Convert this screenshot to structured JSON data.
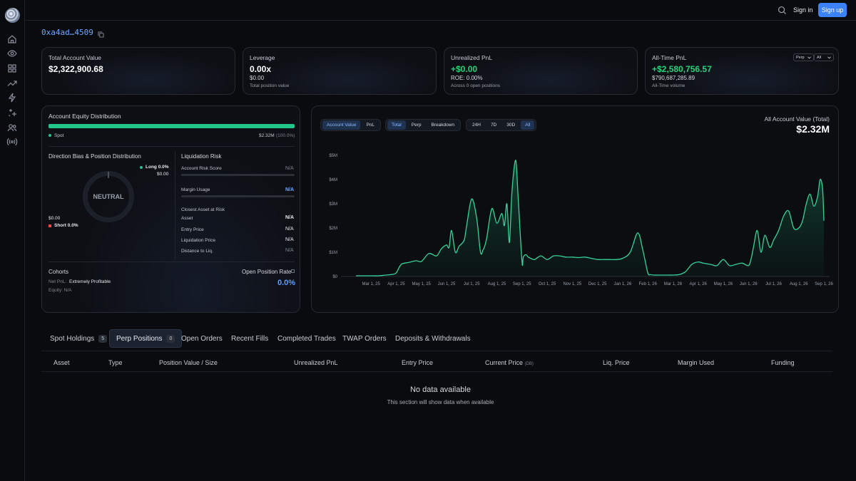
{
  "colors": {
    "accent": "#3b82f6",
    "positive": "#22d37c",
    "negative": "#ef4444",
    "address": "#6ea8ff",
    "rate": "#5b9cff"
  },
  "topbar": {
    "signin": "Sign in",
    "signup": "Sign up",
    "search_icon": "search-icon"
  },
  "sidebar": {
    "items": [
      {
        "icon": "home-icon"
      },
      {
        "icon": "eye-icon"
      },
      {
        "icon": "grid-icon"
      },
      {
        "icon": "trending-icon"
      },
      {
        "icon": "bolt-icon"
      },
      {
        "icon": "sparkles-icon"
      },
      {
        "icon": "users-icon"
      },
      {
        "icon": "broadcast-icon"
      }
    ]
  },
  "address": "0xa4ad…4509",
  "cards": {
    "account_value": {
      "label": "Total Account Value",
      "value": "$2,322,900.68"
    },
    "leverage": {
      "label": "Leverage",
      "value": "0.00x",
      "sub": "$0.00",
      "note": "Total position value"
    },
    "unrealized": {
      "label": "Unrealized PnL",
      "value": "+$0.00",
      "sub": "ROE: 0.00%",
      "note": "Across 0 open positions"
    },
    "alltime": {
      "label": "All-Time PnL",
      "value": "+$2,580,756.57",
      "sub": "$790,687,285.89",
      "note": "All-Time volume",
      "select1": "Perp",
      "select2": "All"
    }
  },
  "equity": {
    "title": "Account Equity Distribution",
    "spot_label": "Spot",
    "spot_value": "$2.32M",
    "spot_pct": "(100.0%)",
    "spot_fraction": 1.0
  },
  "direction": {
    "title": "Direction Bias & Position Distribution",
    "center": "NEUTRAL",
    "long_label": "Long 0.0%",
    "long_value": "$0.00",
    "short_value": "$0.00",
    "short_label": "Short 0.0%"
  },
  "liquidation": {
    "title": "Liquidation Risk",
    "risk_score_label": "Account Risk Score",
    "risk_score": "N/A",
    "margin_label": "Margin Usage",
    "margin": "N/A",
    "closest_label": "Closest Asset at Risk",
    "rows": [
      {
        "label": "Asset",
        "value": "N/A"
      },
      {
        "label": "Entry Price",
        "value": "N/A"
      },
      {
        "label": "Liquidation Price",
        "value": "N/A"
      },
      {
        "label": "Distance to Liq.",
        "value": "N/A"
      }
    ]
  },
  "cohorts": {
    "title": "Cohorts",
    "net_pnl_label": "Net PnL:",
    "net_pnl": "Extremely Profitable",
    "equity_label": "Equity: N/A",
    "rate_label": "Open Position Rate",
    "rate_value": "0.0%"
  },
  "chart_controls": {
    "group1": [
      "Account Value",
      "PnL"
    ],
    "group2": [
      "Total",
      "Perp",
      "Breakdown"
    ],
    "group3": [
      "24H",
      "7D",
      "30D",
      "All"
    ],
    "active": [
      "Account Value",
      "Total",
      "All"
    ],
    "value_title": "All Account Value (Total)",
    "value": "$2.32M"
  },
  "chart_data": {
    "type": "area",
    "title": "",
    "xlabel": "",
    "ylabel": "",
    "ylim": [
      0,
      5000000
    ],
    "y_ticks": [
      "$0",
      "$1M",
      "$2M",
      "$3M",
      "$4M",
      "$5M"
    ],
    "x_ticks": [
      "Mar 1, 25",
      "Apr 1, 25",
      "May 1, 25",
      "Jun 1, 25",
      "Jul 1, 25",
      "Aug 1, 25",
      "Sep 1, 25",
      "Oct 1, 25",
      "Nov 1, 25",
      "Dec 1, 25",
      "Jan 1, 26",
      "Feb 1, 26",
      "Mar 1, 26",
      "Apr 1, 26",
      "May 1, 26",
      "Jun 1, 26",
      "Jul 1, 26",
      "Aug 1, 26",
      "Sep 1, 26"
    ],
    "x": [
      -0.6,
      -0.3,
      0,
      0.3,
      0.6,
      0.8,
      1.0,
      1.2,
      1.5,
      1.8,
      2.0,
      2.3,
      2.6,
      2.8,
      3.0,
      3.1,
      3.2,
      3.35,
      3.5,
      3.7,
      3.8,
      4.0,
      4.2,
      4.35,
      4.45,
      4.5,
      4.6,
      4.8,
      5.0,
      5.2,
      5.3,
      5.4,
      5.5,
      5.6,
      5.75,
      5.85,
      6.0,
      6.05,
      6.15,
      6.25,
      6.35,
      6.5,
      6.75,
      7.0,
      7.25,
      7.5,
      7.75,
      8.0,
      8.25,
      8.5,
      8.75,
      9.0,
      9.25,
      9.5,
      9.75,
      10.0,
      10.3,
      10.6,
      10.8,
      11.0,
      11.1,
      11.25,
      11.5,
      11.75,
      12.0,
      12.25,
      12.5,
      12.75,
      13.0,
      13.2,
      13.5,
      13.75,
      14.0,
      14.25,
      14.5,
      14.75,
      15.0,
      15.1,
      15.2,
      15.35,
      15.5,
      15.65,
      15.85,
      16.0,
      16.2,
      16.4,
      16.6,
      16.8,
      17.0,
      17.15,
      17.3,
      17.45,
      17.6,
      17.75,
      17.85,
      17.95,
      18.0
    ],
    "series": [
      {
        "values": [
          30000,
          30000,
          30000,
          30000,
          60000,
          80000,
          150000,
          500000,
          580000,
          650000,
          620000,
          950000,
          850000,
          1150000,
          1300000,
          1200000,
          1900000,
          1000000,
          1250000,
          1500000,
          2100000,
          3200000,
          2400000,
          1000000,
          1100000,
          1200000,
          1600000,
          2800000,
          2200000,
          2600000,
          2100000,
          3000000,
          1400000,
          3500000,
          4800000,
          3200000,
          600000,
          800000,
          900000,
          800000,
          750000,
          700000,
          850000,
          700000,
          850000,
          850000,
          800000,
          800000,
          780000,
          800000,
          750000,
          700000,
          700000,
          700000,
          700000,
          750000,
          1000000,
          1800000,
          1100000,
          150000,
          80000,
          60000,
          60000,
          60000,
          60000,
          80000,
          200000,
          500000,
          600000,
          550000,
          500000,
          450000,
          700000,
          450000,
          500000,
          550000,
          450000,
          700000,
          1200000,
          1900000,
          1000000,
          1700000,
          1200000,
          1500000,
          1900000,
          2500000,
          2700000,
          2000000,
          2000000,
          2300000,
          3000000,
          3400000,
          2900000,
          3300000,
          4000000,
          3600000,
          2300000
        ]
      }
    ]
  },
  "tabs": [
    {
      "label": "Spot Holdings",
      "count": "5"
    },
    {
      "label": "Perp Positions",
      "count": "0"
    },
    {
      "label": "Open Orders"
    },
    {
      "label": "Recent Fills"
    },
    {
      "label": "Completed Trades"
    },
    {
      "label": "TWAP Orders"
    },
    {
      "label": "Deposits & Withdrawals"
    }
  ],
  "table": {
    "columns": [
      "Asset",
      "Type",
      "Position Value / Size",
      "Unrealized PnL",
      "Entry Price",
      "Current Price",
      "Liq. Price",
      "Margin Used",
      "Funding"
    ],
    "current_price_suffix": "(DB)",
    "empty_title": "No data available",
    "empty_sub": "This section will show data when available"
  }
}
